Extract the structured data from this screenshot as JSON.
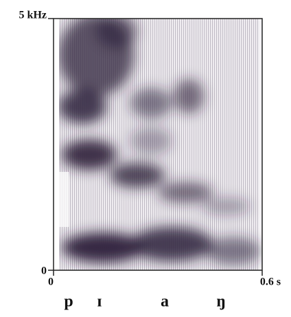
{
  "chart_data": {
    "type": "spectrogram",
    "xlim": [
      0,
      0.6
    ],
    "xticks": [
      0,
      {
        "value": 0.6,
        "label": "0.6 s"
      }
    ],
    "ylim": [
      0,
      5
    ],
    "yticks": [
      0,
      {
        "value": 5,
        "label": "5 kHz"
      }
    ],
    "annotations": [
      "p",
      "ɪ",
      "a",
      "ŋ"
    ]
  }
}
